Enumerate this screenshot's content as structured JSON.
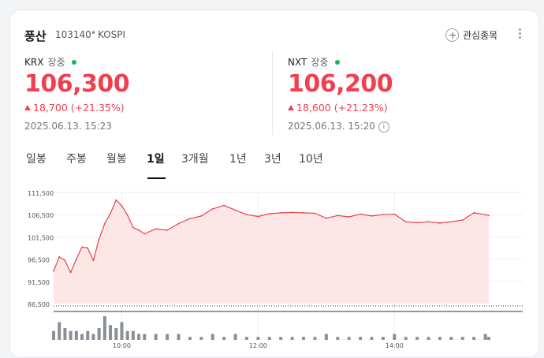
{
  "header": {
    "name": "풍산",
    "code": "103140",
    "separator": "•",
    "market": "KOSPI",
    "watch_label": "관심종목"
  },
  "krx": {
    "label": "KRX",
    "status": "장중",
    "price": "106,300",
    "change": "18,700",
    "change_pct": "(+21.35%)",
    "time": "2025.06.13. 15:23"
  },
  "nxt": {
    "label": "NXT",
    "status": "장중",
    "price": "106,200",
    "change": "18,600",
    "change_pct": "(+21.23%)",
    "time": "2025.06.13. 15:20",
    "info_glyph": "i"
  },
  "tabs": [
    "일봉",
    "주봉",
    "월봉",
    "1일",
    "3개월",
    "1년",
    "3년",
    "10년"
  ],
  "active_tab": "1일",
  "colors": {
    "up": "#f0404f",
    "line": "#e8424c",
    "fill": "#fde6e6",
    "status_dot": "#19b45a"
  },
  "chart_data": {
    "type": "area",
    "y_ticks": [
      "111,500",
      "106,500",
      "101,500",
      "96,500",
      "91,500",
      "86,500"
    ],
    "ylim": [
      86500,
      111500
    ],
    "x_ticks": [
      "10:00",
      "12:00",
      "14:00"
    ],
    "x": [
      "09:00",
      "09:05",
      "09:10",
      "09:15",
      "09:20",
      "09:25",
      "09:30",
      "09:35",
      "09:40",
      "09:45",
      "09:50",
      "09:55",
      "10:00",
      "10:05",
      "10:10",
      "10:15",
      "10:20",
      "10:30",
      "10:40",
      "10:50",
      "11:00",
      "11:10",
      "11:20",
      "11:30",
      "11:40",
      "11:50",
      "12:00",
      "12:10",
      "12:20",
      "12:30",
      "12:40",
      "12:50",
      "13:00",
      "13:10",
      "13:20",
      "13:30",
      "13:40",
      "13:50",
      "14:00",
      "14:10",
      "14:20",
      "14:30",
      "14:40",
      "14:50",
      "15:00",
      "15:10",
      "15:20",
      "15:23"
    ],
    "price": [
      93800,
      97000,
      96200,
      93500,
      96500,
      99200,
      99000,
      96200,
      101000,
      104500,
      106800,
      109800,
      108500,
      106400,
      103600,
      103000,
      102200,
      103300,
      103000,
      104500,
      105600,
      106200,
      107800,
      108600,
      107500,
      106500,
      106100,
      106700,
      106900,
      107000,
      106900,
      106800,
      105700,
      106300,
      106000,
      106600,
      106200,
      106500,
      106600,
      104900,
      104700,
      104900,
      104600,
      104900,
      105300,
      106900,
      106500,
      106300
    ],
    "volume": [
      3,
      6,
      4,
      3,
      3,
      2,
      3,
      2,
      4,
      8,
      5,
      4,
      6,
      3,
      3,
      2,
      2,
      2,
      2,
      2,
      1,
      1,
      2,
      1,
      2,
      1,
      1,
      1,
      1,
      1,
      1,
      1,
      2,
      1,
      1,
      1,
      1,
      1,
      2,
      1,
      1,
      1,
      1,
      1,
      1,
      1,
      2,
      1
    ]
  }
}
